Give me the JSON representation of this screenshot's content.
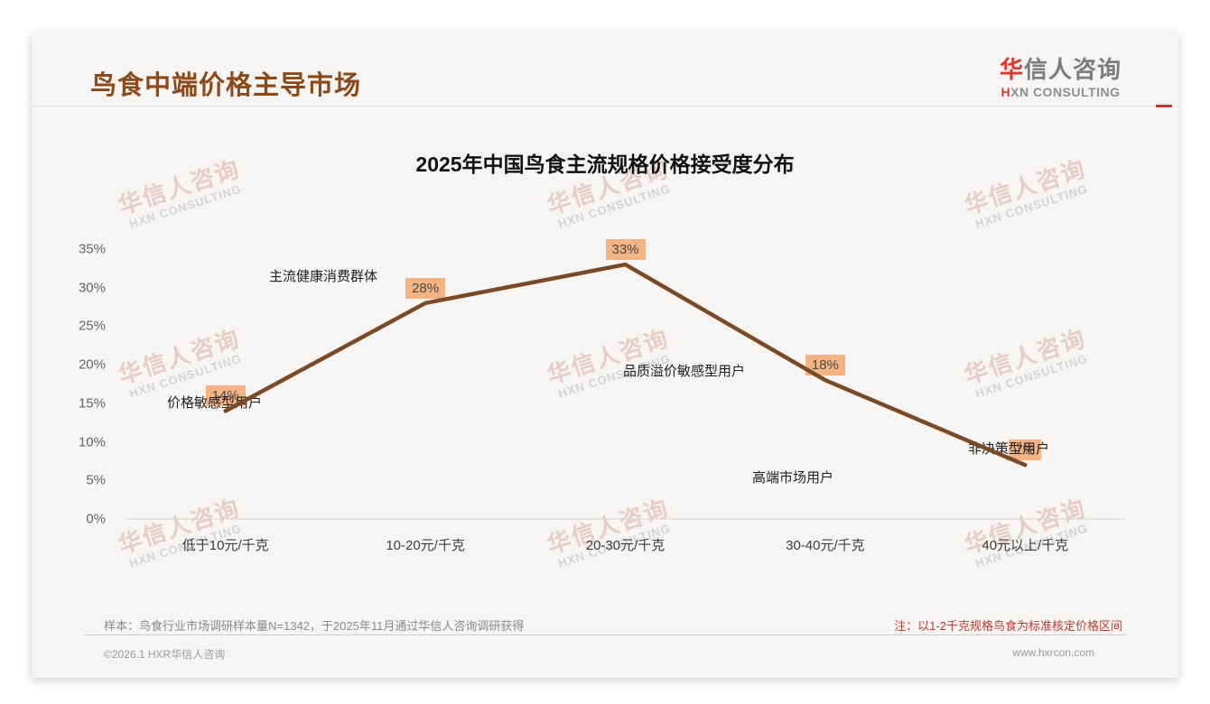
{
  "header": {
    "title": "鸟食中端价格主导市场"
  },
  "logo": {
    "cn_first": "华",
    "cn_rest": "信人咨询",
    "en_first": "H",
    "en_rest": "XN CONSULTING"
  },
  "watermark": {
    "cn": "华信人咨询",
    "en": "HXN CONSULTING"
  },
  "chart_data": {
    "type": "line",
    "title": "2025年中国鸟食主流规格价格接受度分布",
    "categories": [
      "低于10元/千克",
      "10-20元/千克",
      "20-30元/千克",
      "30-40元/千克",
      "40元以上/千克"
    ],
    "values": [
      14,
      28,
      33,
      18,
      7
    ],
    "value_labels": [
      "14%",
      "28%",
      "33%",
      "18%",
      "7%"
    ],
    "annotations": [
      "价格敏感型用户",
      "主流健康消费群体",
      "品质溢价敏感型用户",
      "高端市场用户",
      "非决策型用户"
    ],
    "y_ticks": [
      "35%",
      "30%",
      "25%",
      "20%",
      "15%",
      "10%",
      "5%",
      "0%"
    ],
    "ylim": [
      0,
      35
    ],
    "grid": false,
    "legend": "none",
    "line_color": "#7a4a27",
    "label_bg": "#f3b383"
  },
  "notes": {
    "sample": "样本：鸟食行业市场调研样本量N=1342，于2025年11月通过华信人咨询调研获得",
    "price_basis": "注：以1-2千克规格鸟食为标准核定价格区间"
  },
  "footer": {
    "left": "©2026.1 HXR华信人咨询",
    "right": "www.hxrcon.com"
  },
  "colors": {
    "title_brown": "#8c4a1a",
    "brand_red": "#d9382e",
    "note_red": "#c23b2e",
    "card_bg": "#f6f5f3"
  }
}
